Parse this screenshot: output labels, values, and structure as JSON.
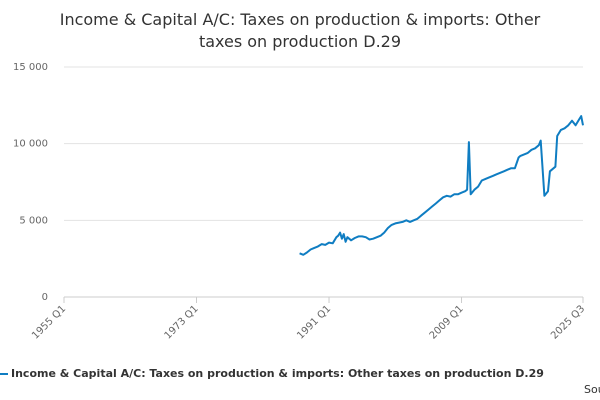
{
  "chart_data": {
    "type": "line",
    "title": "Income & Capital A/C: Taxes on production & imports: Other taxes on production D.29",
    "x": [
      "1987 Q1",
      "1987 Q3",
      "1988 Q1",
      "1988 Q3",
      "1989 Q1",
      "1989 Q3",
      "1990 Q1",
      "1990 Q3",
      "1991 Q1",
      "1991 Q3",
      "1992 Q1",
      "1992 Q2",
      "1992 Q3",
      "1992 Q4",
      "1993 Q1",
      "1993 Q2",
      "1993 Q3",
      "1994 Q1",
      "1994 Q3",
      "1995 Q1",
      "1995 Q3",
      "1996 Q1",
      "1996 Q3",
      "1997 Q1",
      "1997 Q3",
      "1998 Q1",
      "1998 Q3",
      "1999 Q1",
      "1999 Q3",
      "2000 Q1",
      "2000 Q3",
      "2001 Q1",
      "2001 Q3",
      "2002 Q1",
      "2002 Q3",
      "2003 Q1",
      "2003 Q3",
      "2004 Q1",
      "2004 Q3",
      "2005 Q1",
      "2005 Q3",
      "2006 Q1",
      "2006 Q3",
      "2007 Q1",
      "2007 Q3",
      "2008 Q1",
      "2008 Q3",
      "2009 Q1",
      "2009 Q3",
      "2009 Q4",
      "2010 Q1",
      "2010 Q2",
      "2010 Q4",
      "2011 Q2",
      "2011 Q4",
      "2012 Q2",
      "2012 Q4",
      "2013 Q2",
      "2013 Q4",
      "2014 Q2",
      "2014 Q4",
      "2015 Q2",
      "2015 Q4",
      "2016 Q2",
      "2016 Q4",
      "2017 Q1",
      "2017 Q3",
      "2018 Q1",
      "2018 Q3",
      "2019 Q1",
      "2019 Q3",
      "2019 Q4",
      "2020 Q2",
      "2020 Q4",
      "2021 Q1",
      "2021 Q4",
      "2022 Q1",
      "2022 Q3",
      "2023 Q1",
      "2023 Q3",
      "2024 Q1",
      "2024 Q3",
      "2025 Q1",
      "2025 Q2",
      "2025 Q3"
    ],
    "series": [
      {
        "name": "Income & Capital A/C: Taxes on production & imports: Other taxes on production D.29",
        "color": "#0f7dc2",
        "values": [
          2850,
          2750,
          2900,
          3100,
          3200,
          3300,
          3450,
          3400,
          3550,
          3500,
          3900,
          4000,
          4200,
          3800,
          4100,
          3600,
          3900,
          3700,
          3850,
          3950,
          3950,
          3900,
          3750,
          3800,
          3900,
          4000,
          4200,
          4500,
          4700,
          4800,
          4850,
          4900,
          5000,
          4900,
          5000,
          5100,
          5300,
          5500,
          5700,
          5900,
          6100,
          6300,
          6500,
          6600,
          6550,
          6700,
          6700,
          6800,
          6900,
          7000,
          10100,
          6700,
          7000,
          7200,
          7600,
          7700,
          7800,
          7900,
          8000,
          8100,
          8200,
          8300,
          8400,
          8400,
          9100,
          9200,
          9300,
          9400,
          9600,
          9700,
          9900,
          10200,
          6600,
          6900,
          8200,
          8500,
          10500,
          10900,
          11000,
          11200,
          11500,
          11200,
          11600,
          11800,
          11200
        ]
      }
    ],
    "xlim": [
      "1955 Q1",
      "2025 Q3"
    ],
    "xticks": [
      "1955 Q1",
      "1973 Q1",
      "1991 Q1",
      "2009 Q1",
      "2025 Q3"
    ],
    "ylim": [
      0,
      15000
    ],
    "yticks": [
      {
        "value": 0,
        "label": "0"
      },
      {
        "value": 5000,
        "label": "5 000"
      },
      {
        "value": 10000,
        "label": "10 000"
      },
      {
        "value": 15000,
        "label": "15 000"
      }
    ],
    "grid": true,
    "source": "Source:"
  }
}
